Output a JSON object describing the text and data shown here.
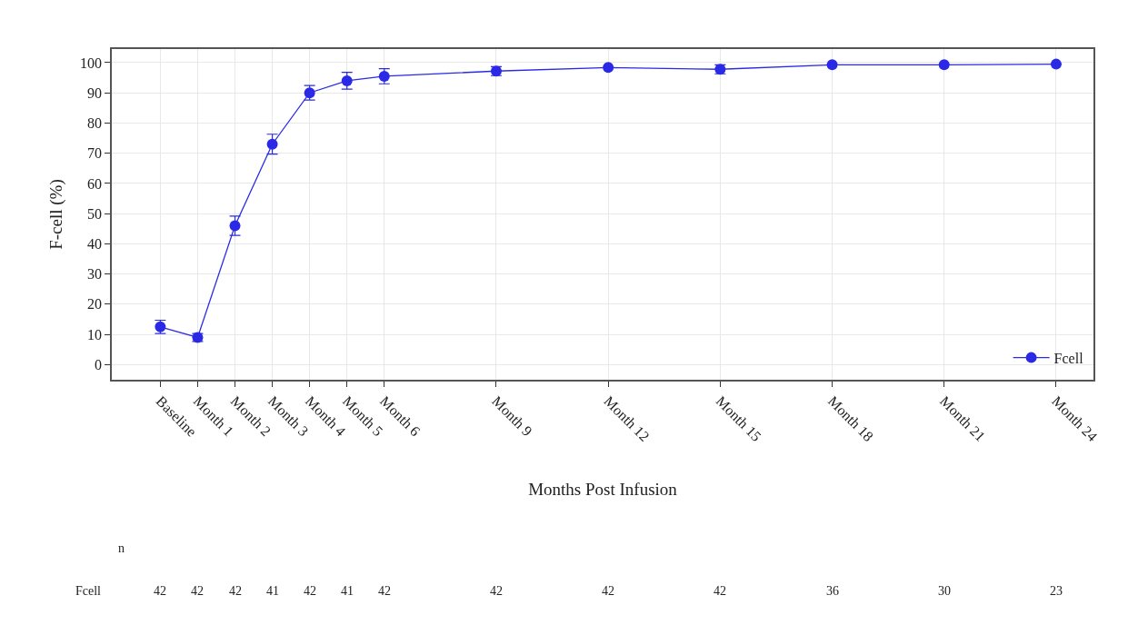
{
  "chart_data": {
    "type": "line",
    "xlabel": "Months Post Infusion",
    "ylabel": "F-cell (%)",
    "categories": [
      "Baseline",
      "Month 1",
      "Month 2",
      "Month 3",
      "Month 4",
      "Month 5",
      "Month 6",
      null,
      null,
      "Month 9",
      null,
      null,
      "Month 12",
      null,
      null,
      "Month 15",
      null,
      null,
      "Month 18",
      null,
      null,
      "Month 21",
      null,
      null,
      "Month 24"
    ],
    "ylim": [
      -5,
      104.5
    ],
    "yticks": [
      0,
      10,
      20,
      30,
      40,
      50,
      60,
      70,
      80,
      90,
      100
    ],
    "series": [
      {
        "name": "Fcell",
        "color": "#2a2ae6",
        "values": [
          12.5,
          9,
          46,
          73,
          90,
          94,
          95.5,
          null,
          null,
          97.2,
          null,
          null,
          98.4,
          null,
          null,
          97.8,
          null,
          null,
          99.3,
          null,
          null,
          99.3,
          null,
          null,
          99.5
        ],
        "errors": [
          2.2,
          1.3,
          3.2,
          3.3,
          2.4,
          2.8,
          2.5,
          null,
          null,
          1.5,
          null,
          null,
          null,
          null,
          null,
          1.5,
          null,
          null,
          null,
          null,
          null,
          null,
          null,
          null,
          null
        ]
      }
    ],
    "grid": true,
    "legend": "bottom right",
    "marker": "circle",
    "line_style": "solid",
    "annotations": [
      "n",
      "Fcell",
      "42",
      "42",
      "42",
      "41",
      "42",
      "41",
      "42",
      "42",
      "42",
      "42",
      "36",
      "30",
      "23"
    ]
  }
}
